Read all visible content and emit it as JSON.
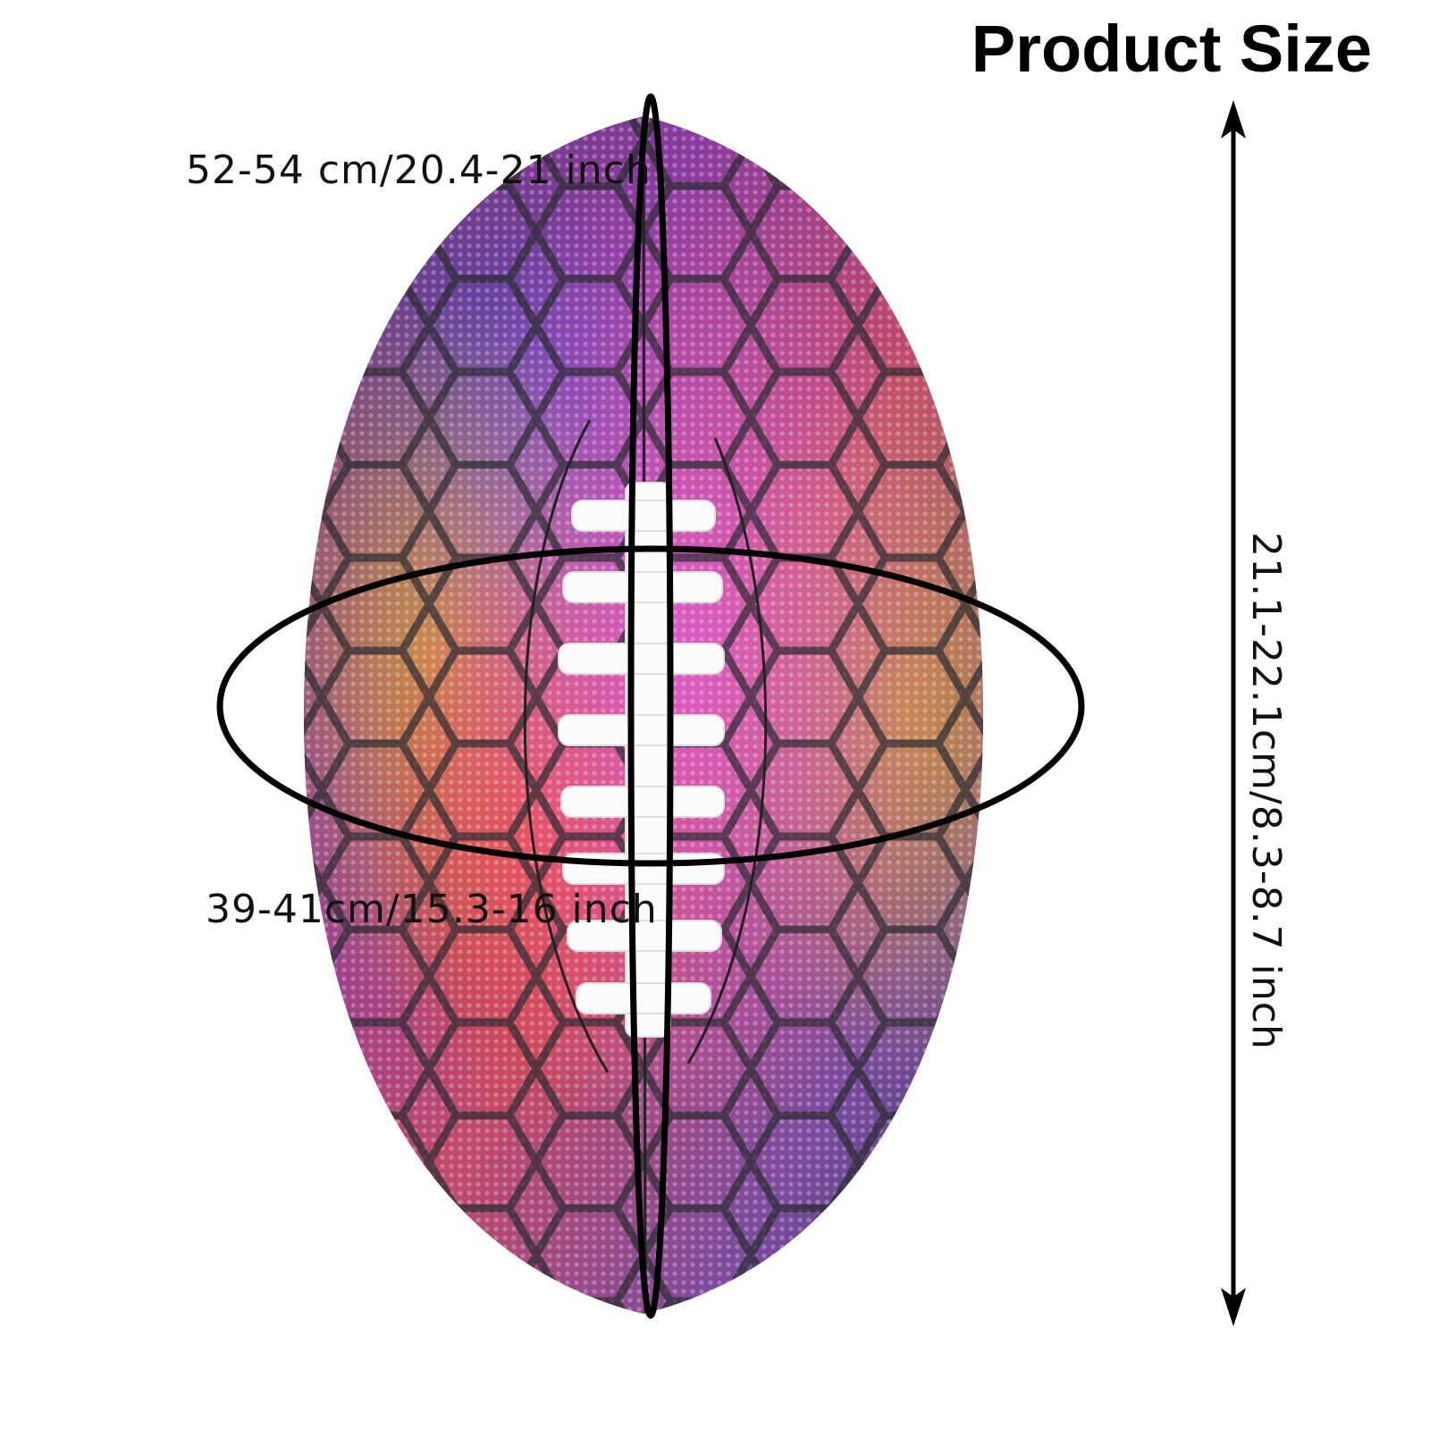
{
  "title": "Product Size",
  "measurements": {
    "long_circumference": "52-54 cm/20.4-21 inch",
    "short_circumference": "39-41cm/15.3-16 inch",
    "length": "21.1-22.1cm/8.3-8.7 inch"
  }
}
